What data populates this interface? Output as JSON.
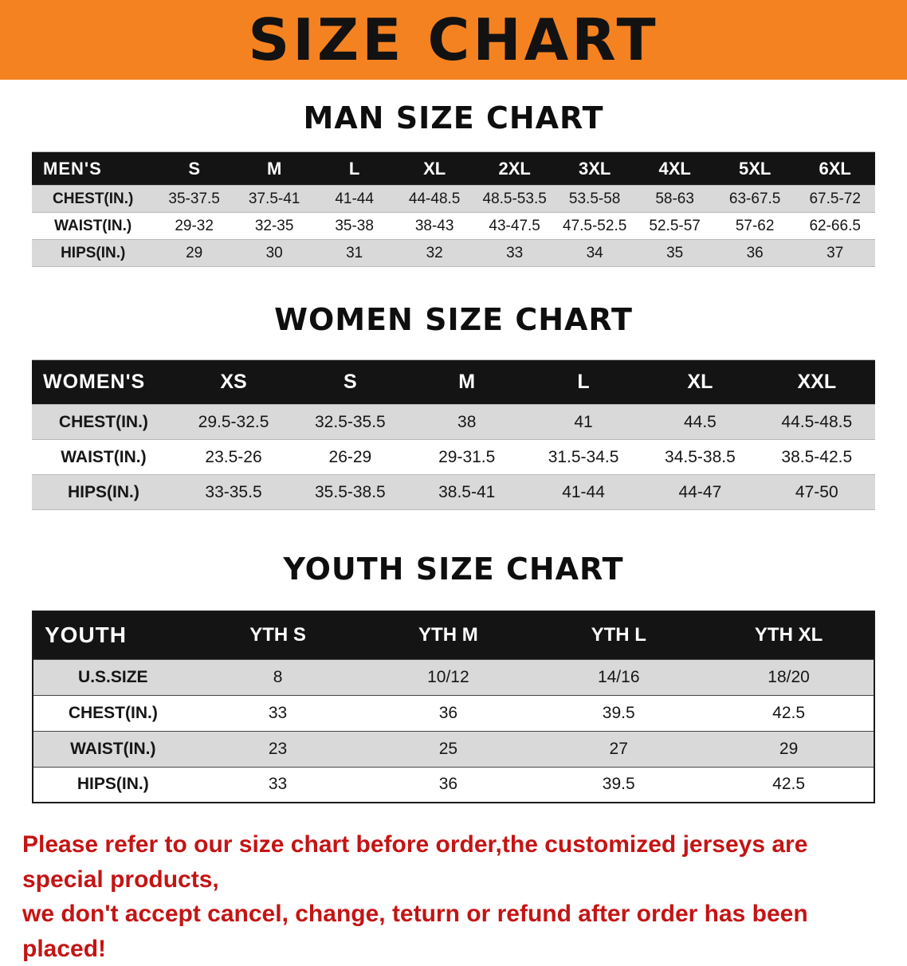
{
  "banner": {
    "title": "SIZE CHART",
    "bg_color": "#F58220"
  },
  "colors": {
    "table_header_bg": "#141414",
    "stripe_row": "#D9D9D9",
    "disclaimer_text": "#C41414"
  },
  "men": {
    "heading": "MAN SIZE CHART",
    "table": {
      "header": [
        "MEN'S",
        "S",
        "M",
        "L",
        "XL",
        "2XL",
        "3XL",
        "4XL",
        "5XL",
        "6XL"
      ],
      "rows": [
        {
          "label": "CHEST(IN.)",
          "values": [
            "35-37.5",
            "37.5-41",
            "41-44",
            "44-48.5",
            "48.5-53.5",
            "53.5-58",
            "58-63",
            "63-67.5",
            "67.5-72"
          ]
        },
        {
          "label": "WAIST(IN.)",
          "values": [
            "29-32",
            "32-35",
            "35-38",
            "38-43",
            "43-47.5",
            "47.5-52.5",
            "52.5-57",
            "57-62",
            "62-66.5"
          ]
        },
        {
          "label": "HIPS(IN.)",
          "values": [
            "29",
            "30",
            "31",
            "32",
            "33",
            "34",
            "35",
            "36",
            "37"
          ]
        }
      ]
    }
  },
  "women": {
    "heading": "WOMEN SIZE CHART",
    "table": {
      "header": [
        "WOMEN'S",
        "XS",
        "S",
        "M",
        "L",
        "XL",
        "XXL"
      ],
      "rows": [
        {
          "label": "CHEST(IN.)",
          "values": [
            "29.5-32.5",
            "32.5-35.5",
            "38",
            "41",
            "44.5",
            "44.5-48.5"
          ]
        },
        {
          "label": "WAIST(IN.)",
          "values": [
            "23.5-26",
            "26-29",
            "29-31.5",
            "31.5-34.5",
            "34.5-38.5",
            "38.5-42.5"
          ]
        },
        {
          "label": "HIPS(IN.)",
          "values": [
            "33-35.5",
            "35.5-38.5",
            "38.5-41",
            "41-44",
            "44-47",
            "47-50"
          ]
        }
      ]
    }
  },
  "youth": {
    "heading": "YOUTH SIZE CHART",
    "table": {
      "header": [
        "YOUTH",
        "YTH S",
        "YTH M",
        "YTH L",
        "YTH XL"
      ],
      "rows": [
        {
          "label": "U.S.SIZE",
          "values": [
            "8",
            "10/12",
            "14/16",
            "18/20"
          ]
        },
        {
          "label": "CHEST(IN.)",
          "values": [
            "33",
            "36",
            "39.5",
            "42.5"
          ]
        },
        {
          "label": "WAIST(IN.)",
          "values": [
            "23",
            "25",
            "27",
            "29"
          ]
        },
        {
          "label": "HIPS(IN.)",
          "values": [
            "33",
            "36",
            "39.5",
            "42.5"
          ]
        }
      ]
    }
  },
  "disclaimer": {
    "line1": "Please refer to our size chart before order,the customized jerseys are special products,",
    "line2": "we don't accept cancel, change, teturn or refund after order has been placed!"
  }
}
